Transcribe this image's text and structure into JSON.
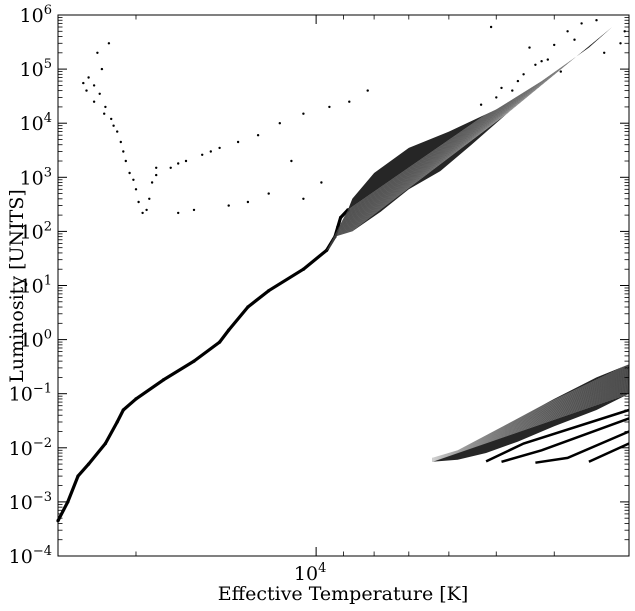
{
  "chart_data": {
    "type": "scatter",
    "title": "",
    "xlabel": "Effective Temperature [K]",
    "ylabel": "Luminosity [UNITS]",
    "x_scale": "log",
    "y_scale": "log",
    "x_axis_reversed": true,
    "xlim": [
      27000,
      3000
    ],
    "ylim": [
      0.0001,
      1000000
    ],
    "x_ticks": [
      {
        "base": "10",
        "exp": "4",
        "value": 10000
      }
    ],
    "y_ticks": [
      {
        "base": "10",
        "exp": "6",
        "value": 1000000
      },
      {
        "base": "10",
        "exp": "5",
        "value": 100000
      },
      {
        "base": "10",
        "exp": "4",
        "value": 10000
      },
      {
        "base": "10",
        "exp": "3",
        "value": 1000
      },
      {
        "base": "10",
        "exp": "2",
        "value": 100
      },
      {
        "base": "10",
        "exp": "1",
        "value": 10
      },
      {
        "base": "10",
        "exp": "0",
        "value": 1
      },
      {
        "base": "10",
        "exp": "−1",
        "value": 0.1
      },
      {
        "base": "10",
        "exp": "−2",
        "value": 0.01
      },
      {
        "base": "10",
        "exp": "−3",
        "value": 0.001
      },
      {
        "base": "10",
        "exp": "−4",
        "value": 0.0001
      }
    ],
    "grid": false,
    "marker_color": "#000000",
    "series": [
      {
        "label": "main-sequence",
        "points": [
          [
            8850,
            250
          ],
          [
            9100,
            180
          ],
          [
            9200,
            120
          ],
          [
            9300,
            80
          ],
          [
            9600,
            45
          ],
          [
            10500,
            20
          ],
          [
            12000,
            8
          ],
          [
            13000,
            4
          ],
          [
            14000,
            1.5
          ],
          [
            14500,
            0.9
          ],
          [
            16000,
            0.4
          ],
          [
            18000,
            0.18
          ],
          [
            20000,
            0.08
          ],
          [
            21000,
            0.05
          ],
          [
            21500,
            0.03
          ],
          [
            22500,
            0.012
          ],
          [
            24000,
            0.005
          ],
          [
            25000,
            0.003
          ],
          [
            26000,
            0.001
          ],
          [
            27000,
            0.00045
          ]
        ]
      },
      {
        "label": "upper-main-sequence-band",
        "upper_edge": [
          [
            3200,
            600000
          ],
          [
            3500,
            250000
          ],
          [
            4200,
            60000
          ],
          [
            5000,
            18000
          ],
          [
            6000,
            7000
          ],
          [
            7000,
            3500
          ],
          [
            8000,
            1200
          ],
          [
            8700,
            400
          ],
          [
            8850,
            250
          ]
        ],
        "lower_edge": [
          [
            4800,
            15000
          ],
          [
            5500,
            4000
          ],
          [
            6200,
            1300
          ],
          [
            7000,
            600
          ],
          [
            7800,
            230
          ],
          [
            8700,
            100
          ],
          [
            9300,
            80
          ],
          [
            9600,
            45
          ]
        ]
      },
      {
        "label": "high-luminosity-scatter",
        "points": [
          [
            3050,
            500000
          ],
          [
            3100,
            300000
          ],
          [
            3400,
            800000
          ],
          [
            3600,
            700000
          ],
          [
            3800,
            500000
          ],
          [
            4000,
            280000
          ],
          [
            4100,
            150000
          ],
          [
            4300,
            120000
          ],
          [
            4500,
            80000
          ],
          [
            4700,
            40000
          ],
          [
            5100,
            600000
          ],
          [
            4200,
            140000
          ],
          [
            3900,
            90000
          ],
          [
            4400,
            250000
          ],
          [
            4600,
            60000
          ],
          [
            5000,
            30000
          ],
          [
            5300,
            22000
          ],
          [
            3300,
            200000
          ],
          [
            3700,
            350000
          ],
          [
            4900,
            45000
          ]
        ]
      },
      {
        "label": "giant-branch",
        "points": [
          [
            8200,
            40000
          ],
          [
            8800,
            25000
          ],
          [
            9500,
            20000
          ],
          [
            10500,
            15000
          ],
          [
            11500,
            10000
          ],
          [
            12500,
            6000
          ],
          [
            13500,
            4500
          ],
          [
            14500,
            3500
          ],
          [
            15500,
            2600
          ],
          [
            16500,
            2000
          ],
          [
            17500,
            1500
          ],
          [
            18500,
            1100
          ],
          [
            11000,
            2000
          ],
          [
            12000,
            500
          ],
          [
            10500,
            400
          ],
          [
            13000,
            350
          ],
          [
            14000,
            300
          ],
          [
            16000,
            250
          ],
          [
            17000,
            220
          ],
          [
            9800,
            800
          ],
          [
            15000,
            3000
          ],
          [
            17000,
            1800
          ]
        ]
      },
      {
        "label": "red-giant-clump",
        "points": [
          [
            18500,
            1500
          ],
          [
            18800,
            800
          ],
          [
            19000,
            400
          ],
          [
            19200,
            250
          ],
          [
            19500,
            220
          ],
          [
            19800,
            350
          ],
          [
            20000,
            600
          ],
          [
            20200,
            900
          ],
          [
            20500,
            1200
          ],
          [
            20800,
            2000
          ],
          [
            21000,
            3000
          ],
          [
            21200,
            4500
          ],
          [
            21500,
            7000
          ],
          [
            22000,
            12000
          ],
          [
            22500,
            20000
          ],
          [
            23000,
            35000
          ],
          [
            23500,
            50000
          ],
          [
            24000,
            70000
          ],
          [
            24500,
            55000
          ],
          [
            23500,
            25000
          ],
          [
            22200,
            300000
          ],
          [
            22800,
            100000
          ],
          [
            23200,
            200000
          ],
          [
            24200,
            40000
          ],
          [
            21800,
            9000
          ],
          [
            22600,
            15000
          ]
        ]
      },
      {
        "label": "white-dwarf-band",
        "upper_edge": [
          [
            3000,
            0.35
          ],
          [
            3400,
            0.2
          ],
          [
            4000,
            0.08
          ],
          [
            4600,
            0.035
          ],
          [
            5200,
            0.017
          ],
          [
            5800,
            0.009
          ],
          [
            6400,
            0.0065
          ]
        ],
        "lower_edge": [
          [
            3000,
            0.1
          ],
          [
            3400,
            0.05
          ],
          [
            4000,
            0.025
          ],
          [
            4600,
            0.013
          ],
          [
            5200,
            0.008
          ],
          [
            5800,
            0.006
          ],
          [
            6400,
            0.0055
          ]
        ]
      },
      {
        "label": "white-dwarf-tracks",
        "lines": [
          [
            [
              3000,
              0.012
            ],
            [
              3500,
              0.0055
            ]
          ],
          [
            [
              3000,
              0.02
            ],
            [
              3800,
              0.0065
            ],
            [
              4300,
              0.0053
            ]
          ],
          [
            [
              3000,
              0.035
            ],
            [
              4200,
              0.009
            ],
            [
              4900,
              0.0055
            ]
          ],
          [
            [
              3000,
              0.05
            ],
            [
              4500,
              0.012
            ],
            [
              5200,
              0.0056
            ]
          ]
        ]
      }
    ]
  }
}
